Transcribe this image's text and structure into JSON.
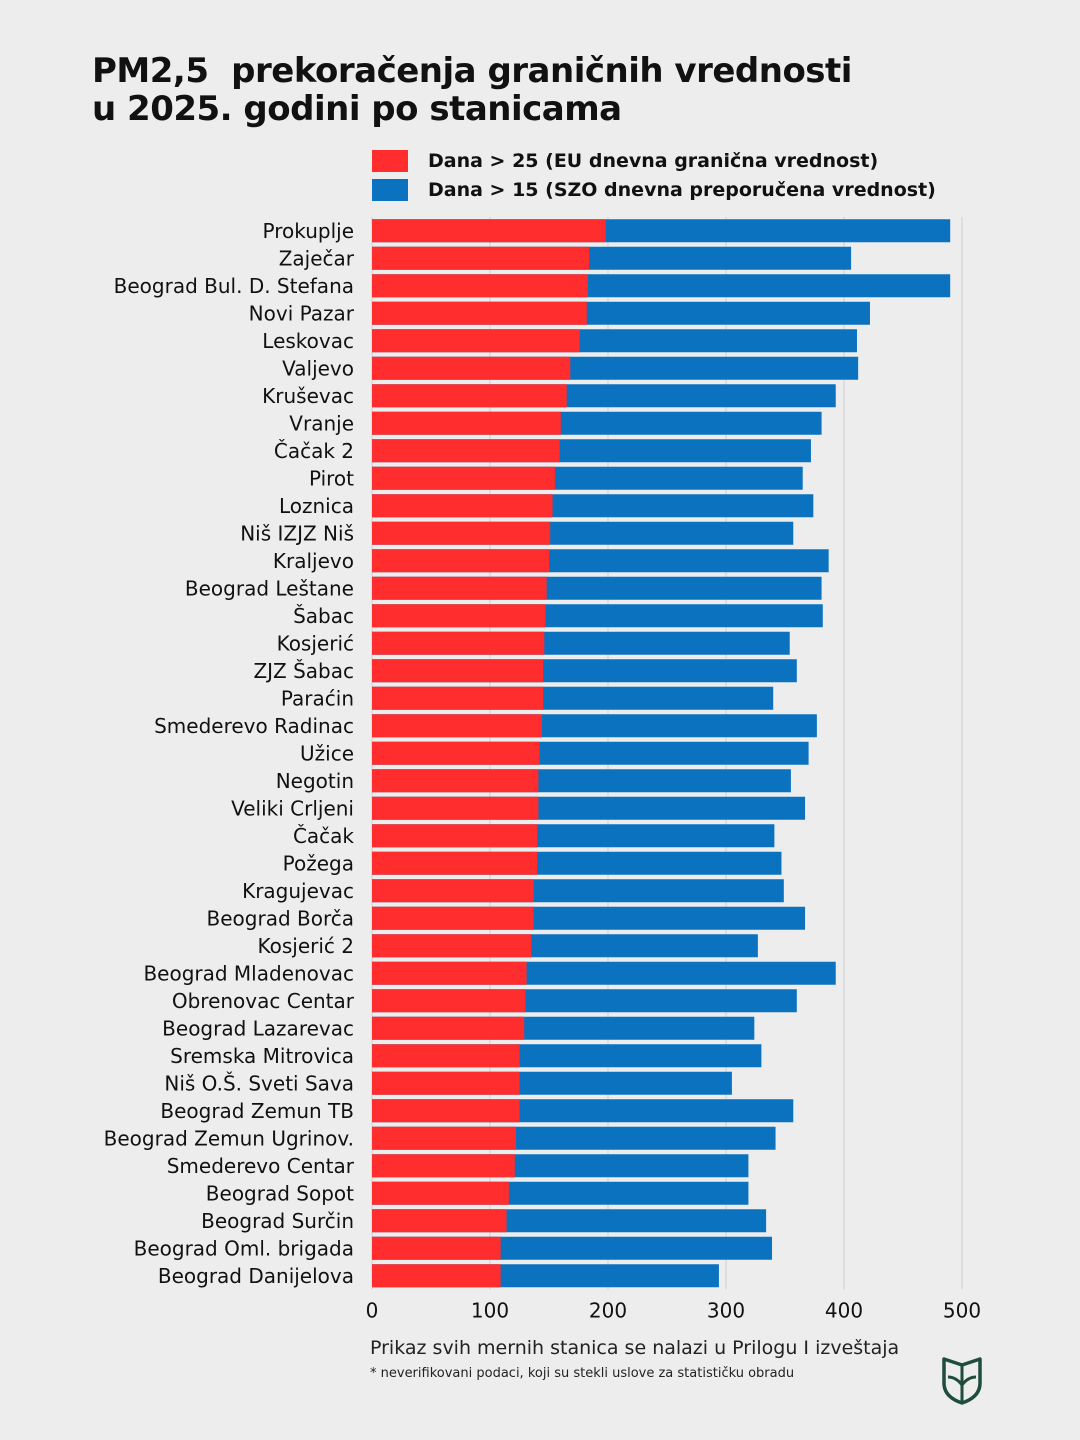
{
  "title": {
    "line1": "PM2,5  prekoračenja graničnih vrednosti",
    "line2": "u 2025. godini po stanicama"
  },
  "legend": [
    {
      "label": "Dana > 25 (EU dnevna granična vrednost)",
      "color": "#ff2d2d"
    },
    {
      "label": "Dana > 15 (SZO dnevna preporučena vrednost)",
      "color": "#0b72c0"
    }
  ],
  "footnote": "Prikaz svih mernih stanica se nalazi u Prilogu I izveštaja",
  "footnote_small": "*  neverifikovani podaci, koji su stekli uslove za statističku obradu",
  "logo_icon": "leaf-shield-icon",
  "chart_data": {
    "type": "bar",
    "orientation": "horizontal",
    "stacked": false,
    "xlim": [
      0,
      500
    ],
    "xticks": [
      0,
      100,
      200,
      300,
      400,
      500
    ],
    "grid": true,
    "legend_position": "top",
    "categories": [
      "Prokuplje",
      "Zaječar",
      "Beograd Bul. D. Stefana",
      "Novi Pazar",
      "Leskovac",
      "Valjevo",
      "Kruševac",
      "Vranje",
      "Čačak 2",
      "Pirot",
      "Loznica",
      "Niš IZJZ Niš",
      "Kraljevo",
      "Beograd Leštane",
      "Šabac",
      "Kosjerić",
      "ZJZ Šabac",
      "Paraćin",
      "Smederevo Radinac",
      "Užice",
      "Negotin",
      "Veliki Crljeni",
      "Čačak",
      "Požega",
      "Kragujevac",
      "Beograd Borča",
      "Kosjerić 2",
      "Beograd Mladenovac",
      "Obrenovac Centar",
      "Beograd Lazarevac",
      "Sremska Mitrovica",
      "Niš O.Š. Sveti Sava",
      "Beograd Zemun TB",
      "Beograd Zemun Ugrinov.",
      "Smederevo Centar",
      "Beograd Sopot",
      "Beograd Surčin",
      "Beograd Oml. brigada",
      "Beograd Danijelova"
    ],
    "series": [
      {
        "name": "Dana > 15 (SZO dnevna preporučena vrednost)",
        "color": "#0b72c0",
        "values": [
          490,
          406,
          490,
          422,
          411,
          412,
          393,
          381,
          372,
          365,
          374,
          357,
          387,
          381,
          382,
          354,
          360,
          340,
          377,
          370,
          355,
          367,
          341,
          347,
          349,
          367,
          327,
          393,
          360,
          324,
          330,
          305,
          357,
          342,
          319,
          319,
          334,
          339,
          294
        ]
      },
      {
        "name": "Dana > 25 (EU dnevna granična vrednost)",
        "color": "#ff2d2d",
        "values": [
          198,
          184,
          183,
          182,
          176,
          168,
          165,
          160,
          159,
          155,
          153,
          151,
          150,
          148,
          147,
          146,
          145,
          145,
          144,
          142,
          141,
          141,
          140,
          140,
          137,
          137,
          135,
          131,
          130,
          129,
          125,
          125,
          125,
          122,
          121,
          116,
          114,
          109,
          109
        ]
      }
    ]
  }
}
